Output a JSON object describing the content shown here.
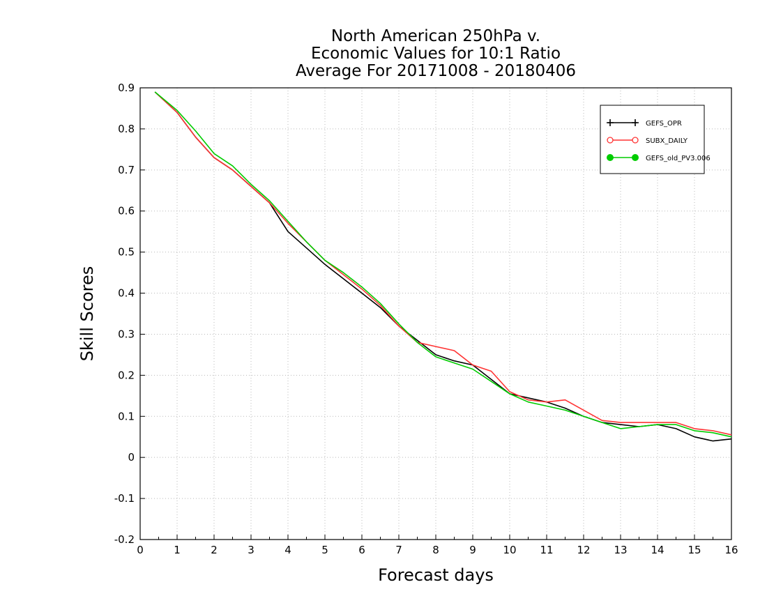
{
  "chart_data": {
    "type": "line",
    "title_lines": [
      "North American 250hPa v.",
      "Economic Values for 10:1 Ratio",
      "Average For 20171008 - 20180406"
    ],
    "xlabel": "Forecast days",
    "ylabel": "Skill Scores",
    "xlim": [
      0,
      16
    ],
    "ylim": [
      -0.2,
      0.9
    ],
    "xticks": [
      "0",
      "1",
      "2",
      "3",
      "4",
      "5",
      "6",
      "7",
      "8",
      "9",
      "10",
      "11",
      "12",
      "13",
      "14",
      "15",
      "16"
    ],
    "yticks": [
      "-0.2",
      "-0.1",
      "0",
      "0.1",
      "0.2",
      "0.3",
      "0.4",
      "0.5",
      "0.6",
      "0.7",
      "0.8",
      "0.9"
    ],
    "grid": true,
    "legend_position": "top-right",
    "x": [
      0.4,
      1,
      1.5,
      2,
      2.5,
      3,
      3.5,
      4,
      4.5,
      5,
      5.5,
      6,
      6.5,
      7,
      7.5,
      8,
      8.5,
      9,
      9.5,
      10,
      10.5,
      11,
      11.5,
      12,
      12.5,
      13,
      13.5,
      14,
      14.5,
      15,
      15.5,
      16
    ],
    "series": [
      {
        "name": "GEFS_OPR",
        "color": "#000000",
        "marker": "plus",
        "values": [
          0.89,
          0.84,
          0.78,
          0.73,
          0.7,
          0.66,
          0.62,
          0.55,
          0.51,
          0.47,
          0.435,
          0.4,
          0.365,
          0.32,
          0.285,
          0.25,
          0.235,
          0.225,
          0.19,
          0.155,
          0.145,
          0.135,
          0.12,
          0.1,
          0.085,
          0.08,
          0.075,
          0.08,
          0.07,
          0.05,
          0.04,
          0.045
        ]
      },
      {
        "name": "SUBX_DAILY",
        "color": "#ff3333",
        "marker": "open-circle",
        "values": [
          0.89,
          0.84,
          0.78,
          0.73,
          0.7,
          0.66,
          0.62,
          0.57,
          0.525,
          0.48,
          0.445,
          0.41,
          0.37,
          0.32,
          0.28,
          0.27,
          0.26,
          0.225,
          0.21,
          0.16,
          0.14,
          0.135,
          0.14,
          0.115,
          0.09,
          0.085,
          0.085,
          0.085,
          0.085,
          0.07,
          0.065,
          0.055
        ]
      },
      {
        "name": "GEFS_old_PV3.006",
        "color": "#00cc00",
        "marker": "filled-circle",
        "values": [
          0.89,
          0.845,
          0.795,
          0.74,
          0.71,
          0.665,
          0.625,
          0.575,
          0.525,
          0.48,
          0.45,
          0.415,
          0.375,
          0.325,
          0.28,
          0.245,
          0.23,
          0.215,
          0.185,
          0.155,
          0.135,
          0.125,
          0.115,
          0.1,
          0.085,
          0.07,
          0.075,
          0.08,
          0.08,
          0.065,
          0.06,
          0.05
        ]
      }
    ]
  }
}
